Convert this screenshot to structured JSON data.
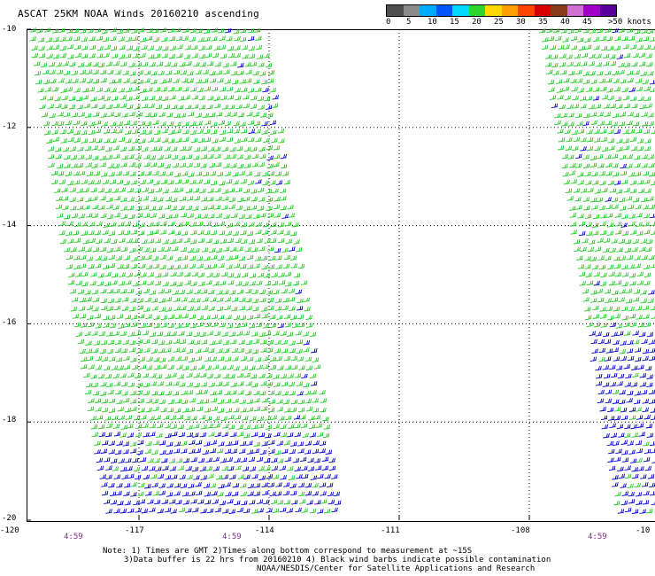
{
  "title": "ASCAT 25KM NOAA Winds 20160210 ascending",
  "legend": {
    "colors": [
      "#505050",
      "#8c8c8c",
      "#00aaff",
      "#0055ff",
      "#00d8ff",
      "#2ed52e",
      "#ffd800",
      "#ffa000",
      "#ff4500",
      "#d80000",
      "#8c3c1e",
      "#d070d0",
      "#a000c8",
      "#5a009a"
    ],
    "labels": [
      "0",
      "5",
      "10",
      "15",
      "20",
      "25",
      "30",
      "35",
      "40",
      "45",
      ">50 knots"
    ]
  },
  "axes": {
    "lat_labels": [
      "-10",
      "-12",
      "-14",
      "-16",
      "-18",
      "-20"
    ],
    "lon_labels": [
      "-120",
      "-117",
      "-114",
      "-111",
      "-108",
      "-10"
    ],
    "time_labels": [
      "4:59",
      "4:59",
      "4:59"
    ]
  },
  "notes": {
    "line1": "Note: 1) Times are GMT 2)Times along bottom correspond to measurement at ~15S",
    "line2": "3)Data buffer is 22 hrs from 20160210 4) Black wind barbs indicate possible contamination",
    "line3": "NOAA/NESDIS/Center for Satellite Applications and Research"
  },
  "swaths": [
    {
      "name": "west swath",
      "lon_west_top": -119.6,
      "lon_east_top": -114.2,
      "lon_west_bottom": -117.8,
      "lon_east_bottom": -112.4
    },
    {
      "name": "east swath",
      "lon_west_top": -107.8,
      "lon_east_top": -104.0,
      "lon_west_bottom": -106.0,
      "lon_east_bottom": -104.0
    }
  ],
  "colors": {
    "barb_green": "#22cc22",
    "barb_blue": "#0000cc",
    "grid": "#000000",
    "time": "#7a2a8a"
  }
}
